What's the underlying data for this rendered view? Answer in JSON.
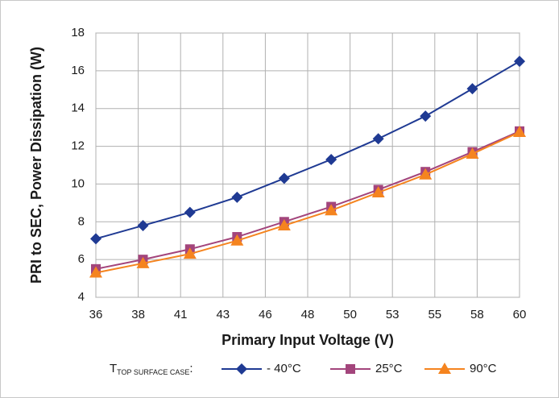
{
  "chart_data": {
    "type": "line",
    "xlabel": "Primary Input Voltage (V)",
    "ylabel": "PRI to SEC, Power Dissipation (W)",
    "legend_title": {
      "main": "T",
      "subscript": "TOP SURFACE CASE",
      "suffix": ":"
    },
    "x": [
      36,
      38.67,
      41.33,
      44,
      46.67,
      49.33,
      52,
      54.67,
      57.33,
      60
    ],
    "series": [
      {
        "name": "- 40°C",
        "color": "#1f3a93",
        "marker": "diamond",
        "values": [
          7.1,
          7.8,
          8.5,
          9.3,
          10.3,
          11.3,
          12.4,
          13.6,
          15.05,
          16.5
        ]
      },
      {
        "name": "25°C",
        "color": "#a3457c",
        "marker": "square",
        "values": [
          5.5,
          6.0,
          6.55,
          7.2,
          8.0,
          8.8,
          9.7,
          10.65,
          11.7,
          12.8
        ]
      },
      {
        "name": "90°C",
        "color": "#f5841f",
        "marker": "triangle",
        "values": [
          5.3,
          5.8,
          6.3,
          7.0,
          7.8,
          8.6,
          9.55,
          10.5,
          11.6,
          12.75
        ]
      }
    ],
    "xlim": [
      36,
      60
    ],
    "xticks": [
      36,
      {
        "value": 38.4,
        "label": "38"
      },
      {
        "value": 40.8,
        "label": "41"
      },
      {
        "value": 43.2,
        "label": "43"
      },
      {
        "value": 45.6,
        "label": "46"
      },
      48,
      {
        "value": 50.4,
        "label": "50"
      },
      {
        "value": 52.8,
        "label": "53"
      },
      {
        "value": 55.2,
        "label": "55"
      },
      {
        "value": 57.6,
        "label": "58"
      },
      60
    ],
    "ylim": [
      4,
      18
    ],
    "yticks": [
      4,
      6,
      8,
      10,
      12,
      14,
      16,
      18
    ],
    "grid": true
  }
}
